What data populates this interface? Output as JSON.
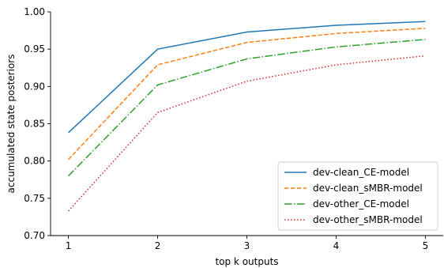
{
  "chart_data": {
    "type": "line",
    "title": "",
    "xlabel": "top k outputs",
    "ylabel": "accumulated state posteriors",
    "x": [
      1,
      2,
      3,
      4,
      5
    ],
    "xlim": [
      0.8,
      5.2
    ],
    "ylim": [
      0.7,
      1.0
    ],
    "xticks": [
      "1",
      "2",
      "3",
      "4",
      "5"
    ],
    "yticks": [
      "0.70",
      "0.75",
      "0.80",
      "0.85",
      "0.90",
      "0.95",
      "1.00"
    ],
    "grid": false,
    "legend_position": "lower-right",
    "series": [
      {
        "name": "dev-clean_CE-model",
        "values": [
          0.838,
          0.95,
          0.973,
          0.982,
          0.987
        ],
        "color": "#1f77b4",
        "dash": "solid"
      },
      {
        "name": "dev-clean_sMBR-model",
        "values": [
          0.802,
          0.929,
          0.959,
          0.971,
          0.978
        ],
        "color": "#ff7f0e",
        "dash": "dashed"
      },
      {
        "name": "dev-other_CE-model",
        "values": [
          0.78,
          0.902,
          0.937,
          0.953,
          0.963
        ],
        "color": "#2ca02c",
        "dash": "dashdot"
      },
      {
        "name": "dev-other_sMBR-model",
        "values": [
          0.733,
          0.865,
          0.907,
          0.929,
          0.941
        ],
        "color": "#d62728",
        "dash": "dotted"
      }
    ]
  }
}
